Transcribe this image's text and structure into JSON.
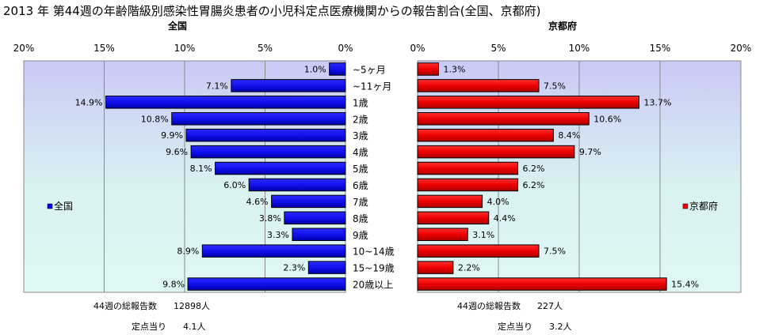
{
  "title": "2013 年 第44週の年齢階級別感染性胃腸炎患者の小児科定点医療機関からの報告割合(全国、京都府)",
  "categories": [
    "~5ヶ月",
    "~11ヶ月",
    "1歳",
    "2歳",
    "3歳",
    "4歳",
    "5歳",
    "6歳",
    "7歳",
    "8歳",
    "9歳",
    "10~14歳",
    "15~19歳",
    "20歳以上"
  ],
  "chart_data": [
    {
      "type": "bar",
      "orientation": "horizontal",
      "subtitle": "全国",
      "xlim": [
        0,
        20
      ],
      "x_reversed": true,
      "ticks": [
        "20%",
        "15%",
        "10%",
        "5%",
        "0%"
      ],
      "grid": true,
      "legend": "全国",
      "legend_position": "left",
      "series": [
        {
          "name": "全国",
          "color": "#0000ee",
          "values": [
            1.0,
            7.1,
            14.9,
            10.8,
            9.9,
            9.6,
            8.1,
            6.0,
            4.6,
            3.8,
            3.3,
            8.9,
            2.3,
            9.8
          ],
          "labels": [
            "1.0%",
            "7.1%",
            "14.9%",
            "10.8%",
            "9.9%",
            "9.6%",
            "8.1%",
            "6.0%",
            "4.6%",
            "3.8%",
            "3.3%",
            "8.9%",
            "2.3%",
            "9.8%"
          ]
        }
      ],
      "footer": {
        "total_label": "44週の総報告数",
        "total_value": "12898人",
        "per_label": "定点当り",
        "per_value": "4.1人"
      }
    },
    {
      "type": "bar",
      "orientation": "horizontal",
      "subtitle": "京都府",
      "xlim": [
        0,
        20
      ],
      "x_reversed": false,
      "ticks": [
        "0%",
        "5%",
        "10%",
        "15%",
        "20%"
      ],
      "grid": true,
      "legend": "京都府",
      "legend_position": "right",
      "series": [
        {
          "name": "京都府",
          "color": "#ee0000",
          "values": [
            1.3,
            7.5,
            13.7,
            10.6,
            8.4,
            9.7,
            6.2,
            6.2,
            4.0,
            4.4,
            3.1,
            7.5,
            2.2,
            15.4
          ],
          "labels": [
            "1.3%",
            "7.5%",
            "13.7%",
            "10.6%",
            "8.4%",
            "9.7%",
            "6.2%",
            "6.2%",
            "4.0%",
            "4.4%",
            "3.1%",
            "7.5%",
            "2.2%",
            "15.4%"
          ]
        }
      ],
      "footer": {
        "total_label": "44週の総報告数",
        "total_value": "227人",
        "per_label": "定点当り",
        "per_value": "3.2人"
      }
    }
  ]
}
